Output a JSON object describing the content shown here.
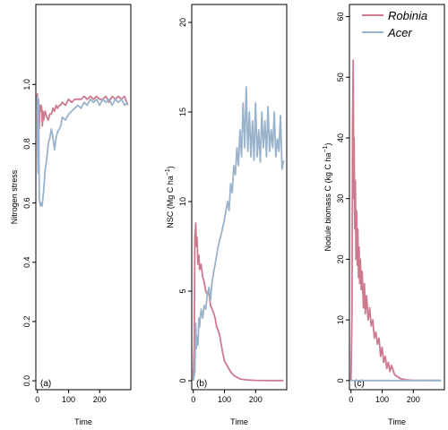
{
  "colors": {
    "robinia": "#cc7a8e",
    "acer": "#9ab3cc",
    "frame": "#000000"
  },
  "legend": {
    "placement": "top-right",
    "items": [
      "Robinia",
      "Acer"
    ]
  },
  "chart_data": [
    {
      "type": "line",
      "panel_label": "(a)",
      "xlabel": "Time",
      "ylabel": "Nitrogen stress",
      "xlim": [
        -5,
        300
      ],
      "ylim": [
        -0.03,
        1.27
      ],
      "xticks": [
        0,
        100,
        200
      ],
      "yticks": [
        0.0,
        0.2,
        0.4,
        0.6,
        0.8,
        1.0
      ],
      "ytick_labels": [
        "0.0",
        "0.2",
        "0.4",
        "0.6",
        "0.8",
        "1.0"
      ],
      "series": [
        {
          "name": "Robinia",
          "x": [
            0,
            2,
            4,
            6,
            8,
            10,
            12,
            14,
            16,
            18,
            20,
            25,
            30,
            35,
            40,
            45,
            50,
            55,
            60,
            65,
            70,
            75,
            80,
            90,
            100,
            110,
            120,
            130,
            140,
            150,
            160,
            170,
            180,
            190,
            200,
            210,
            220,
            230,
            240,
            250,
            260,
            270,
            280,
            290
          ],
          "y": [
            0.97,
            0.75,
            0.95,
            0.85,
            0.93,
            0.91,
            0.93,
            0.92,
            0.86,
            0.91,
            0.88,
            0.91,
            0.89,
            0.88,
            0.9,
            0.9,
            0.92,
            0.91,
            0.93,
            0.92,
            0.93,
            0.93,
            0.94,
            0.93,
            0.95,
            0.94,
            0.95,
            0.95,
            0.95,
            0.96,
            0.95,
            0.96,
            0.95,
            0.96,
            0.95,
            0.95,
            0.96,
            0.94,
            0.96,
            0.95,
            0.96,
            0.95,
            0.96,
            0.93
          ]
        },
        {
          "name": "Acer",
          "x": [
            0,
            2,
            4,
            6,
            8,
            10,
            12,
            15,
            18,
            20,
            25,
            30,
            35,
            40,
            45,
            50,
            55,
            60,
            65,
            70,
            75,
            80,
            90,
            100,
            110,
            120,
            130,
            140,
            150,
            160,
            170,
            180,
            190,
            200,
            210,
            220,
            230,
            240,
            250,
            260,
            270,
            280,
            290
          ],
          "y": [
            0.96,
            0.7,
            0.95,
            0.62,
            0.6,
            0.59,
            0.6,
            0.59,
            0.62,
            0.64,
            0.71,
            0.75,
            0.8,
            0.82,
            0.85,
            0.82,
            0.78,
            0.82,
            0.84,
            0.85,
            0.86,
            0.89,
            0.88,
            0.9,
            0.91,
            0.92,
            0.93,
            0.92,
            0.94,
            0.93,
            0.95,
            0.94,
            0.95,
            0.93,
            0.95,
            0.94,
            0.95,
            0.93,
            0.95,
            0.94,
            0.95,
            0.93,
            0.94
          ]
        }
      ]
    },
    {
      "type": "line",
      "panel_label": "(b)",
      "xlabel": "Time",
      "ylabel": "NSC (Mg C ha",
      "ylabel_sup": "−1",
      "ylabel_close": ")",
      "xlim": [
        -5,
        300
      ],
      "ylim": [
        -0.5,
        21
      ],
      "xticks": [
        0,
        100,
        200
      ],
      "yticks": [
        0,
        5,
        10,
        15,
        20
      ],
      "ytick_labels": [
        "0",
        "5",
        "10",
        "15",
        "20"
      ],
      "series": [
        {
          "name": "Robinia",
          "x": [
            0,
            3,
            5,
            8,
            10,
            12,
            15,
            18,
            20,
            25,
            30,
            35,
            40,
            45,
            50,
            55,
            60,
            65,
            70,
            75,
            80,
            85,
            90,
            95,
            100,
            110,
            120,
            130,
            140,
            150,
            170,
            200,
            250,
            290
          ],
          "y": [
            0.0,
            2.0,
            8.0,
            8.8,
            7.5,
            8.0,
            6.5,
            7.0,
            6.2,
            6.5,
            5.8,
            5.5,
            5.0,
            4.8,
            5.0,
            4.2,
            4.0,
            3.8,
            3.5,
            3.0,
            2.8,
            2.5,
            2.0,
            1.5,
            1.1,
            0.8,
            0.5,
            0.3,
            0.2,
            0.1,
            0.05,
            0.02,
            0.01,
            0.01
          ]
        },
        {
          "name": "Acer",
          "x": [
            0,
            5,
            8,
            10,
            12,
            15,
            18,
            20,
            25,
            30,
            35,
            40,
            45,
            50,
            55,
            60,
            65,
            70,
            75,
            80,
            90,
            100,
            110,
            115,
            120,
            125,
            130,
            135,
            140,
            145,
            150,
            155,
            160,
            165,
            170,
            175,
            180,
            185,
            190,
            195,
            200,
            205,
            210,
            215,
            220,
            225,
            230,
            235,
            240,
            245,
            250,
            255,
            260,
            265,
            270,
            275,
            280,
            285,
            290
          ],
          "y": [
            0.0,
            0.5,
            3.2,
            1.8,
            2.5,
            2.0,
            3.5,
            3.0,
            4.0,
            3.5,
            4.2,
            4.0,
            4.8,
            5.2,
            4.5,
            5.5,
            6.0,
            6.5,
            7.0,
            7.5,
            8.2,
            9.0,
            10.0,
            9.5,
            11.0,
            10.5,
            12.0,
            11.5,
            13.0,
            12.0,
            14.0,
            12.5,
            15.5,
            13.0,
            16.4,
            12.8,
            15.0,
            12.5,
            14.5,
            12.3,
            15.5,
            12.5,
            14.0,
            12.2,
            15.0,
            13.0,
            14.5,
            12.5,
            15.3,
            12.8,
            14.0,
            13.0,
            15.0,
            12.5,
            13.5,
            12.8,
            14.8,
            11.8,
            12.3
          ]
        }
      ]
    },
    {
      "type": "line",
      "panel_label": "(c)",
      "xlabel": "Time",
      "ylabel": "Nodule biomass C (kg C ha",
      "ylabel_sup": "−1",
      "ylabel_close": ")",
      "xlim": [
        -5,
        300
      ],
      "ylim": [
        -1.5,
        62
      ],
      "xticks": [
        0,
        100,
        200
      ],
      "yticks": [
        0,
        10,
        20,
        30,
        40,
        50,
        60
      ],
      "ytick_labels": [
        "0",
        "10",
        "20",
        "30",
        "40",
        "50",
        "60"
      ],
      "series": [
        {
          "name": "Robinia",
          "x": [
            0,
            3,
            5,
            7,
            9,
            10,
            12,
            14,
            16,
            18,
            20,
            22,
            24,
            26,
            28,
            30,
            33,
            36,
            40,
            43,
            46,
            50,
            55,
            60,
            65,
            70,
            75,
            80,
            85,
            90,
            95,
            100,
            105,
            110,
            115,
            120,
            125,
            130,
            140,
            150,
            160,
            180,
            200,
            250,
            290
          ],
          "y": [
            0,
            10,
            42,
            52.8,
            30,
            40,
            25,
            33,
            20,
            28,
            19,
            25,
            17,
            22,
            16,
            20,
            15,
            18,
            12,
            16,
            11,
            14,
            10,
            12,
            9,
            10,
            7,
            8,
            6,
            7,
            4,
            5.5,
            3,
            4,
            2,
            3,
            1.5,
            2.5,
            1,
            0.6,
            0.3,
            0.1,
            0.05,
            0.02,
            0.02
          ]
        },
        {
          "name": "Acer",
          "x": [
            0,
            290
          ],
          "y": [
            0,
            0
          ]
        }
      ]
    }
  ]
}
